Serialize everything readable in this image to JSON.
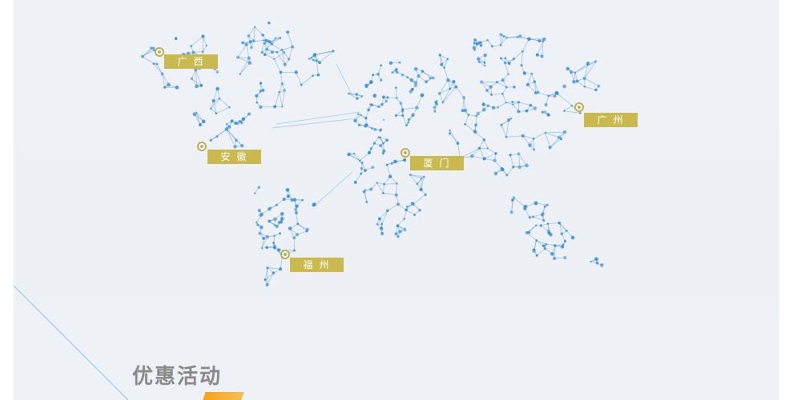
{
  "cities": [
    {
      "id": "guangxi",
      "label": "广西"
    },
    {
      "id": "anhui",
      "label": "安徽"
    },
    {
      "id": "xiamen",
      "label": "厦门"
    },
    {
      "id": "guangzhou",
      "label": "广州"
    },
    {
      "id": "fuzhou",
      "label": "福州"
    }
  ],
  "promotion": {
    "title": "优惠活动"
  },
  "colors": {
    "background": "#eef2f7",
    "network": "#3d8fd1",
    "label_bg": "#c9b94f",
    "title": "#8a8a8a",
    "accent": "#f7a21b"
  }
}
